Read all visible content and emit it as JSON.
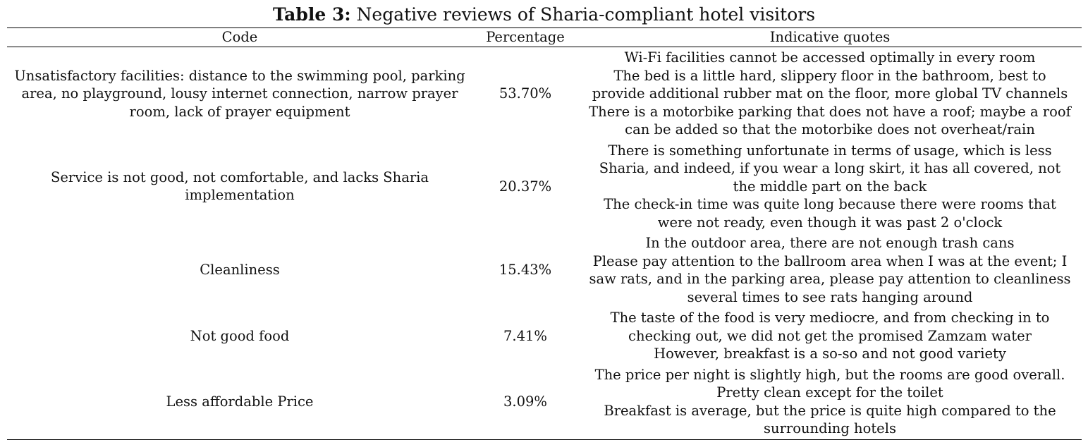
{
  "caption": {
    "label": "Table 3:",
    "title": "Negative reviews of Sharia-compliant hotel visitors"
  },
  "table": {
    "headers": [
      "Code",
      "Percentage",
      "Indicative quotes"
    ],
    "rows": [
      {
        "code": "Unsatisfactory facilities: distance to the swimming pool, parking area, no playground, lousy internet connection, narrow prayer room, lack of prayer equipment",
        "percentage": "53.70%",
        "quotes": [
          "Wi-Fi facilities cannot be accessed optimally in every room",
          "The bed is a little hard, slippery floor in the bathroom, best to provide additional rubber mat on the floor, more global TV channels",
          "There is a motorbike parking that does not have a roof; maybe a roof can be added so that the motorbike does not overheat/rain"
        ]
      },
      {
        "code": "Service is not good, not comfortable, and lacks Sharia implementation",
        "percentage": "20.37%",
        "quotes": [
          "There is something unfortunate in terms of usage, which is less Sharia, and indeed, if you wear a long skirt, it has all covered, not the middle part on the back",
          "The check-in time was quite long because there were rooms that were not ready, even though it was past 2 o'clock"
        ]
      },
      {
        "code": "Cleanliness",
        "percentage": "15.43%",
        "quotes": [
          "In the outdoor area, there are not enough trash cans",
          "Please pay attention to the ballroom area when I was at the event; I saw rats, and in the parking area, please pay attention to cleanliness several times to see rats hanging around"
        ]
      },
      {
        "code": "Not good food",
        "percentage": "7.41%",
        "quotes": [
          "The taste of the food is very mediocre, and from checking in to checking out, we did not get the promised Zamzam water",
          "However, breakfast is a so-so and not good variety"
        ]
      },
      {
        "code": "Less affordable Price",
        "percentage": "3.09%",
        "quotes": [
          "The price per night is slightly high, but the rooms are good overall. Pretty clean except for the toilet",
          "Breakfast is average, but the price is quite high compared to the surrounding hotels"
        ]
      }
    ]
  }
}
